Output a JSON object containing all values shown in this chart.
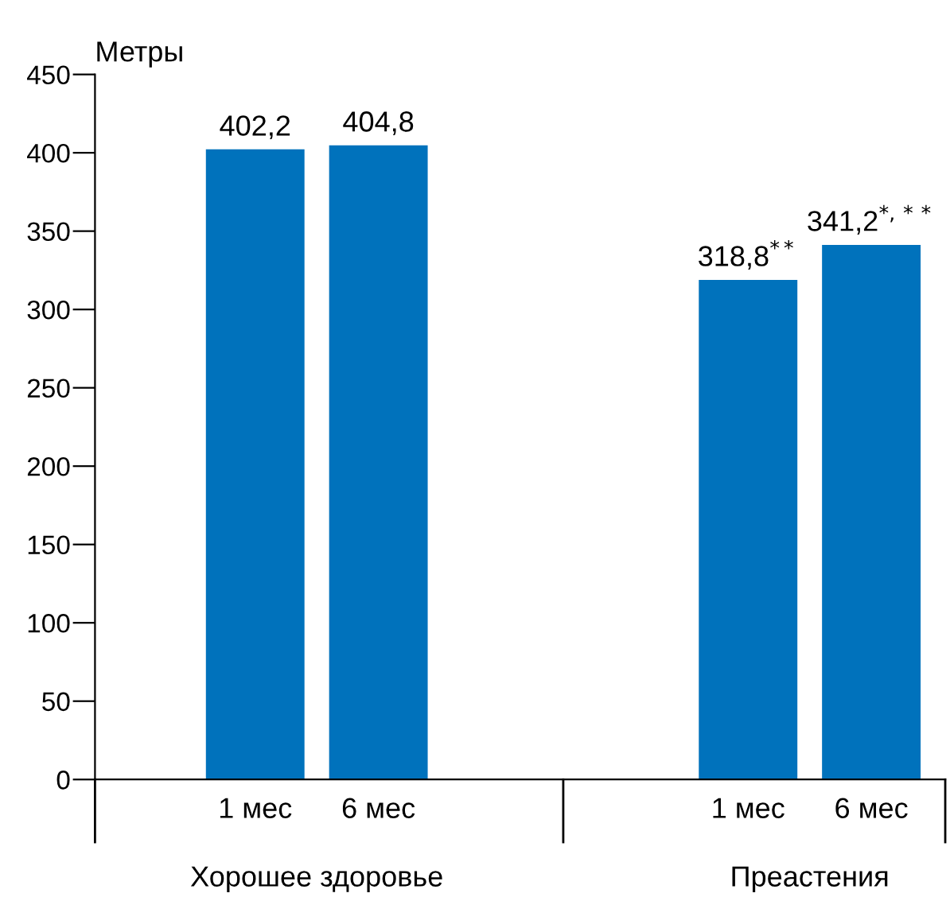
{
  "chart_data": {
    "type": "bar",
    "ylabel": "Метры",
    "categories": [
      "1 мес",
      "6 мес",
      null,
      null,
      "1 мес",
      "6 мес"
    ],
    "values": [
      402.2,
      404.8,
      null,
      null,
      318.8,
      341.2
    ],
    "color": "#0072bc",
    "value_labels": [
      "402,2",
      "404,8",
      null,
      null,
      "318,8$^{**}$",
      "341,2$^{*,**}$"
    ],
    "ylim": [
      0,
      450
    ],
    "yticks": [
      0,
      50,
      100,
      150,
      200,
      250,
      300,
      350,
      400,
      450
    ],
    "grid": false,
    "legend": false,
    "annotations": [
      "Хорошее здоровье",
      "Преастения"
    ]
  }
}
